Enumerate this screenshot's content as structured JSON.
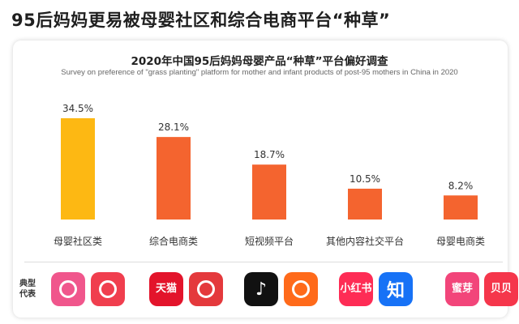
{
  "headline": "95后妈妈更易被母婴社区和综合电商平台“种草”",
  "chart_data": {
    "type": "bar",
    "title": "2020年中国95后妈妈母婴产品“种草”平台偏好调查",
    "subtitle": "Survey on preference of \"grass planting\" platform for mother and infant products of post-95 mothers in China in 2020",
    "categories": [
      "母婴社区类",
      "综合电商类",
      "短视频平台",
      "其他内容社交平台",
      "母婴电商类"
    ],
    "values": [
      34.5,
      28.1,
      18.7,
      10.5,
      8.2
    ],
    "value_labels": [
      "34.5%",
      "28.1%",
      "18.7%",
      "10.5%",
      "8.2%"
    ],
    "unit": "%",
    "ylim": [
      0,
      40
    ],
    "grid": false,
    "colors": [
      "#FDB813",
      "#F4642F",
      "#F4642F",
      "#F4642F",
      "#F4642F"
    ]
  },
  "representatives": {
    "label": "典型代表",
    "apps": [
      {
        "name": "baby-tree-icon",
        "text": "",
        "color": "#F0568C"
      },
      {
        "name": "mama-net-icon",
        "text": "",
        "color": "#F03E4E"
      },
      {
        "name": "tmall-icon",
        "text": "天猫",
        "color": "#E3142B"
      },
      {
        "name": "jd-icon",
        "text": "",
        "color": "#E4393C"
      },
      {
        "name": "douyin-icon",
        "text": "♪",
        "color": "#111111"
      },
      {
        "name": "kuaishou-icon",
        "text": "",
        "color": "#FF6A1A"
      },
      {
        "name": "xiaohongshu-icon",
        "text": "小红书",
        "color": "#FE2C55"
      },
      {
        "name": "zhihu-icon",
        "text": "知",
        "color": "#1772F6"
      },
      {
        "name": "miya-icon",
        "text": "蜜芽",
        "color": "#F2457A"
      },
      {
        "name": "beibei-icon",
        "text": "贝贝",
        "color": "#F5364B"
      }
    ]
  }
}
